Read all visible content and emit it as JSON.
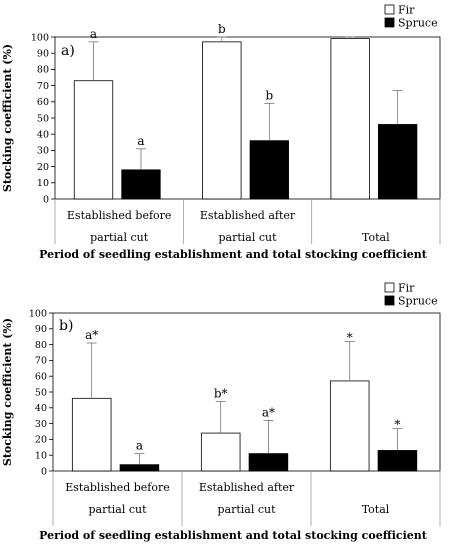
{
  "chart_data": [
    {
      "type": "bar",
      "panel_label": "a)",
      "categories": [
        [
          "Established before",
          "partial cut"
        ],
        [
          "Established after",
          "partial cut"
        ],
        [
          "",
          "Total"
        ]
      ],
      "series": [
        {
          "name": "Fir",
          "color": "#ffffff",
          "values": [
            73,
            97,
            99
          ],
          "error": [
            24,
            6,
            1
          ],
          "labels": [
            "a",
            "b",
            ""
          ]
        },
        {
          "name": "Spruce",
          "color": "#000000",
          "values": [
            18,
            36,
            46
          ],
          "error": [
            13,
            23,
            21
          ],
          "labels": [
            "a",
            "b",
            ""
          ]
        }
      ],
      "ylabel": "Stocking coefficient (%)",
      "xlabel": "Period of seedling establishment and total stocking coefficient",
      "ylim": [
        0,
        100
      ],
      "yticks": [
        0,
        10,
        20,
        30,
        40,
        50,
        60,
        70,
        80,
        90,
        100
      ],
      "legend": {
        "position": "top-right",
        "entries": [
          "Fir",
          "Spruce"
        ]
      }
    },
    {
      "type": "bar",
      "panel_label": "b)",
      "categories": [
        [
          "Established before",
          "partial cut"
        ],
        [
          "Established after",
          "partial cut"
        ],
        [
          "",
          "Total"
        ]
      ],
      "series": [
        {
          "name": "Fir",
          "color": "#ffffff",
          "values": [
            46,
            24,
            57
          ],
          "error": [
            35,
            20,
            25
          ],
          "labels": [
            "a*",
            "b*",
            "*"
          ]
        },
        {
          "name": "Spruce",
          "color": "#000000",
          "values": [
            4,
            11,
            13
          ],
          "error": [
            7,
            21,
            14
          ],
          "labels": [
            "a",
            "a*",
            "*"
          ]
        }
      ],
      "ylabel": "Stocking coefficient (%)",
      "xlabel": "Period of seedling establishment and total stocking coefficient",
      "ylim": [
        0,
        100
      ],
      "yticks": [
        0,
        10,
        20,
        30,
        40,
        50,
        60,
        70,
        80,
        90,
        100
      ],
      "legend": {
        "position": "top-right",
        "entries": [
          "Fir",
          "Spruce"
        ]
      }
    }
  ]
}
